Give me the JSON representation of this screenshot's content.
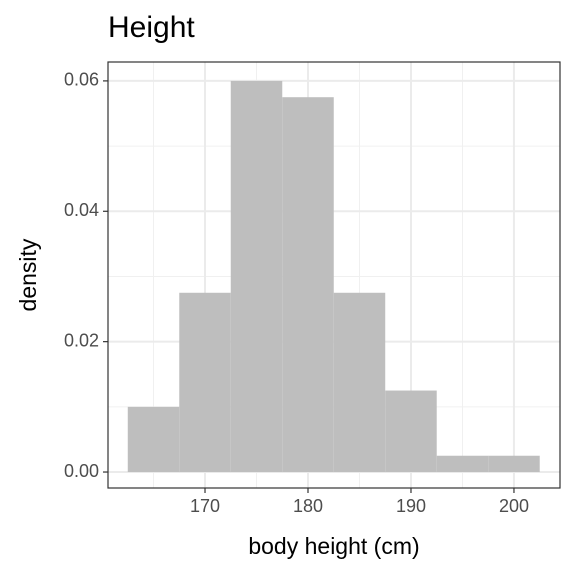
{
  "chart_data": {
    "type": "histogram",
    "title": "Height",
    "x_label": "body height (cm)",
    "y_label": "density",
    "bins": [
      162.5,
      167.5,
      172.5,
      177.5,
      182.5,
      187.5,
      192.5,
      197.5,
      202.5
    ],
    "values": [
      0.01,
      0.0275,
      0.06,
      0.0575,
      0.0275,
      0.0125,
      0.0025,
      0.0025
    ],
    "color": "#bebebe",
    "xlim": [
      160.58,
      204.47
    ],
    "xticks": [
      170,
      180,
      190,
      200
    ],
    "x_minor_ticks": [
      165,
      175,
      185,
      195
    ],
    "ylim": [
      -0.00245,
      0.0629
    ],
    "yticks": [
      {
        "value": 0,
        "label": "0.00"
      },
      {
        "value": 0.02,
        "label": "0.02"
      },
      {
        "value": 0.04,
        "label": "0.04"
      },
      {
        "value": 0.06,
        "label": "0.06"
      }
    ],
    "y_minor_ticks": [
      0.01,
      0.03,
      0.05
    ],
    "grid": true
  }
}
